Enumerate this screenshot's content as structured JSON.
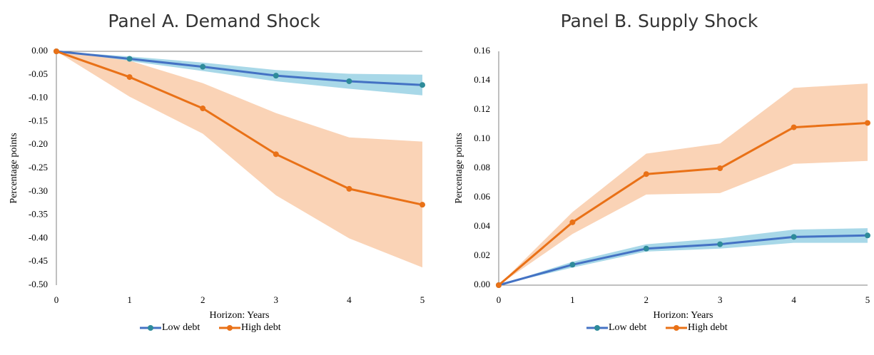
{
  "colors": {
    "low_line": "#4472C4",
    "low_marker": "#2E8B9A",
    "low_band": "#A8D8E8",
    "high_line": "#E97117",
    "high_band": "#FAD3B6"
  },
  "chart_data": [
    {
      "type": "line",
      "title": "Panel A. Demand Shock",
      "xlabel": "Horizon: Years",
      "ylabel": "Percentage points",
      "x": [
        0,
        1,
        2,
        3,
        4,
        5
      ],
      "xlim": [
        0,
        5
      ],
      "ylim": [
        -0.5,
        0
      ],
      "yticks": [
        "0.00",
        "-0.05",
        "-0.10",
        "-0.15",
        "-0.20",
        "-0.25",
        "-0.30",
        "-0.35",
        "-0.40",
        "-0.45",
        "-0.50"
      ],
      "ytick_values": [
        0,
        -0.05,
        -0.1,
        -0.15,
        -0.2,
        -0.25,
        -0.3,
        -0.35,
        -0.4,
        -0.45,
        -0.5
      ],
      "xticks": [
        "0",
        "1",
        "2",
        "3",
        "4",
        "5"
      ],
      "legend": "bottom",
      "grid": false,
      "series": [
        {
          "name": "Low debt",
          "values": [
            0,
            -0.016,
            -0.033,
            -0.052,
            -0.064,
            -0.072
          ],
          "lower": [
            0,
            -0.021,
            -0.042,
            -0.064,
            -0.08,
            -0.094
          ],
          "upper": [
            0,
            -0.011,
            -0.024,
            -0.04,
            -0.048,
            -0.05
          ]
        },
        {
          "name": "High debt",
          "values": [
            0,
            -0.055,
            -0.122,
            -0.22,
            -0.294,
            -0.328
          ],
          "lower": [
            0,
            -0.097,
            -0.176,
            -0.308,
            -0.4,
            -0.462
          ],
          "upper": [
            0,
            -0.02,
            -0.068,
            -0.132,
            -0.184,
            -0.193
          ]
        }
      ]
    },
    {
      "type": "line",
      "title": "Panel B. Supply Shock",
      "xlabel": "Horizon: Years",
      "ylabel": "Percentage points",
      "x": [
        0,
        1,
        2,
        3,
        4,
        5
      ],
      "xlim": [
        0,
        5
      ],
      "ylim": [
        0,
        0.16
      ],
      "yticks": [
        "0.00",
        "0.02",
        "0.04",
        "0.06",
        "0.08",
        "0.10",
        "0.12",
        "0.14",
        "0.16"
      ],
      "ytick_values": [
        0,
        0.02,
        0.04,
        0.06,
        0.08,
        0.1,
        0.12,
        0.14,
        0.16
      ],
      "xticks": [
        "0",
        "1",
        "2",
        "3",
        "4",
        "5"
      ],
      "legend": "bottom",
      "grid": false,
      "series": [
        {
          "name": "Low debt",
          "values": [
            0,
            0.014,
            0.025,
            0.028,
            0.033,
            0.034
          ],
          "lower": [
            0,
            0.012,
            0.023,
            0.025,
            0.029,
            0.029
          ],
          "upper": [
            0,
            0.016,
            0.028,
            0.032,
            0.038,
            0.039
          ]
        },
        {
          "name": "High debt",
          "values": [
            0,
            0.043,
            0.076,
            0.08,
            0.108,
            0.111
          ],
          "lower": [
            0,
            0.035,
            0.062,
            0.063,
            0.083,
            0.085
          ],
          "upper": [
            0,
            0.05,
            0.09,
            0.097,
            0.135,
            0.138
          ]
        }
      ]
    }
  ]
}
